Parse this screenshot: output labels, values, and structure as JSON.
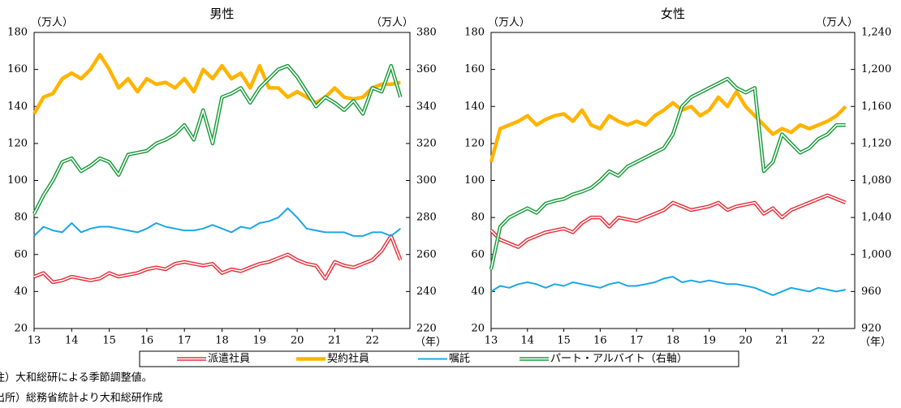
{
  "chart_data": [
    {
      "type": "line",
      "title": "男性",
      "ylabel": "（万人）",
      "y2label": "（万人）",
      "xlabel": "（年）",
      "xlim": [
        13,
        23
      ],
      "xticks": [
        13,
        14,
        15,
        16,
        17,
        18,
        19,
        20,
        21,
        22
      ],
      "ylim": [
        20,
        180
      ],
      "yticks": [
        20,
        40,
        60,
        80,
        100,
        120,
        140,
        160,
        180
      ],
      "y2lim": [
        220,
        380
      ],
      "y2ticks": [
        220,
        240,
        260,
        280,
        300,
        320,
        340,
        360,
        380
      ],
      "x": [
        13,
        13.25,
        13.5,
        13.75,
        14,
        14.25,
        14.5,
        14.75,
        15,
        15.25,
        15.5,
        15.75,
        16,
        16.25,
        16.5,
        16.75,
        17,
        17.25,
        17.5,
        17.75,
        18,
        18.25,
        18.5,
        18.75,
        19,
        19.25,
        19.5,
        19.75,
        20,
        20.25,
        20.5,
        20.75,
        21,
        21.25,
        21.5,
        21.75,
        22,
        22.25,
        22.5,
        22.75
      ],
      "series": [
        {
          "name": "派遣社員",
          "color": "#e8303a",
          "double": true,
          "values": [
            48,
            50,
            45,
            46,
            48,
            47,
            46,
            47,
            50,
            48,
            49,
            50,
            52,
            53,
            52,
            55,
            56,
            55,
            54,
            55,
            50,
            52,
            51,
            53,
            55,
            56,
            58,
            60,
            57,
            55,
            54,
            47,
            56,
            54,
            53,
            55,
            57,
            62,
            70,
            57
          ]
        },
        {
          "name": "契約社員",
          "color": "#ffb400",
          "double": false,
          "values": [
            136,
            145,
            147,
            155,
            158,
            155,
            160,
            168,
            160,
            150,
            155,
            148,
            155,
            152,
            153,
            150,
            155,
            148,
            160,
            155,
            162,
            155,
            158,
            150,
            162,
            150,
            150,
            145,
            148,
            145,
            142,
            145,
            150,
            145,
            144,
            145,
            150,
            152,
            152,
            153
          ]
        },
        {
          "name": "嘱託",
          "color": "#1aa7e8",
          "double": false,
          "values": [
            70,
            75,
            73,
            72,
            77,
            72,
            74,
            75,
            75,
            74,
            73,
            72,
            74,
            77,
            75,
            74,
            73,
            73,
            74,
            76,
            74,
            72,
            75,
            74,
            77,
            78,
            80,
            85,
            80,
            74,
            73,
            72,
            72,
            72,
            70,
            70,
            72,
            72,
            70,
            74
          ]
        },
        {
          "name": "パート・アルバイト（右軸）",
          "color": "#1a9a3a",
          "double": true,
          "axis": "y2",
          "values": [
            282,
            292,
            300,
            310,
            312,
            305,
            308,
            312,
            310,
            303,
            314,
            315,
            316,
            320,
            322,
            325,
            330,
            322,
            338,
            320,
            345,
            347,
            350,
            342,
            350,
            355,
            360,
            362,
            356,
            348,
            340,
            345,
            342,
            338,
            343,
            336,
            350,
            348,
            362,
            345
          ]
        }
      ]
    },
    {
      "type": "line",
      "title": "女性",
      "ylabel": "（万人）",
      "y2label": "（万人）",
      "xlabel": "（年）",
      "xlim": [
        13,
        23
      ],
      "xticks": [
        13,
        14,
        15,
        16,
        17,
        18,
        19,
        20,
        21,
        22
      ],
      "ylim": [
        20,
        180
      ],
      "yticks": [
        20,
        40,
        60,
        80,
        100,
        120,
        140,
        160,
        180
      ],
      "y2lim": [
        920,
        1240
      ],
      "y2ticks": [
        920,
        960,
        {
          "value": 1000,
          "label": "1,000"
        },
        {
          "value": 1040,
          "label": "1,040"
        },
        {
          "value": 1080,
          "label": "1,080"
        },
        {
          "value": 1120,
          "label": "1,120"
        },
        {
          "value": 1160,
          "label": "1,160"
        },
        {
          "value": 1200,
          "label": "1,200"
        },
        {
          "value": 1240,
          "label": "1,240"
        }
      ],
      "x": [
        13,
        13.25,
        13.5,
        13.75,
        14,
        14.25,
        14.5,
        14.75,
        15,
        15.25,
        15.5,
        15.75,
        16,
        16.25,
        16.5,
        16.75,
        17,
        17.25,
        17.5,
        17.75,
        18,
        18.25,
        18.5,
        18.75,
        19,
        19.25,
        19.5,
        19.75,
        20,
        20.25,
        20.5,
        20.75,
        21,
        21.25,
        21.5,
        21.75,
        22,
        22.25,
        22.5,
        22.75
      ],
      "series": [
        {
          "name": "派遣社員",
          "color": "#e8303a",
          "double": true,
          "values": [
            73,
            68,
            66,
            64,
            68,
            70,
            72,
            73,
            74,
            72,
            77,
            80,
            80,
            75,
            80,
            79,
            78,
            80,
            82,
            84,
            88,
            86,
            84,
            85,
            86,
            88,
            84,
            86,
            87,
            88,
            82,
            85,
            80,
            84,
            86,
            88,
            90,
            92,
            90,
            88
          ]
        },
        {
          "name": "契約社員",
          "color": "#ffb400",
          "double": false,
          "values": [
            110,
            128,
            130,
            132,
            135,
            130,
            133,
            135,
            136,
            132,
            138,
            130,
            128,
            135,
            132,
            130,
            132,
            130,
            135,
            138,
            142,
            138,
            140,
            135,
            138,
            145,
            140,
            148,
            140,
            135,
            130,
            125,
            128,
            126,
            130,
            128,
            130,
            132,
            135,
            140
          ]
        },
        {
          "name": "嘱託",
          "color": "#1aa7e8",
          "double": false,
          "values": [
            40,
            43,
            42,
            44,
            45,
            44,
            42,
            44,
            43,
            45,
            44,
            43,
            42,
            44,
            45,
            43,
            43,
            44,
            45,
            47,
            48,
            45,
            46,
            45,
            46,
            45,
            44,
            44,
            43,
            42,
            40,
            38,
            40,
            42,
            41,
            40,
            42,
            41,
            40,
            41
          ]
        },
        {
          "name": "パート・アルバイト（右軸）",
          "color": "#1a9a3a",
          "double": true,
          "axis": "y2",
          "values": [
            984,
            1030,
            1040,
            1045,
            1050,
            1045,
            1055,
            1058,
            1060,
            1065,
            1068,
            1072,
            1080,
            1090,
            1085,
            1095,
            1100,
            1105,
            1110,
            1115,
            1130,
            1160,
            1170,
            1175,
            1180,
            1185,
            1190,
            1180,
            1175,
            1180,
            1090,
            1100,
            1130,
            1120,
            1110,
            1115,
            1125,
            1130,
            1140,
            1140
          ]
        }
      ]
    }
  ],
  "notes": [
    "注）大和総研による季節調整値。",
    "出所）総務省統計より大和総研作成"
  ]
}
